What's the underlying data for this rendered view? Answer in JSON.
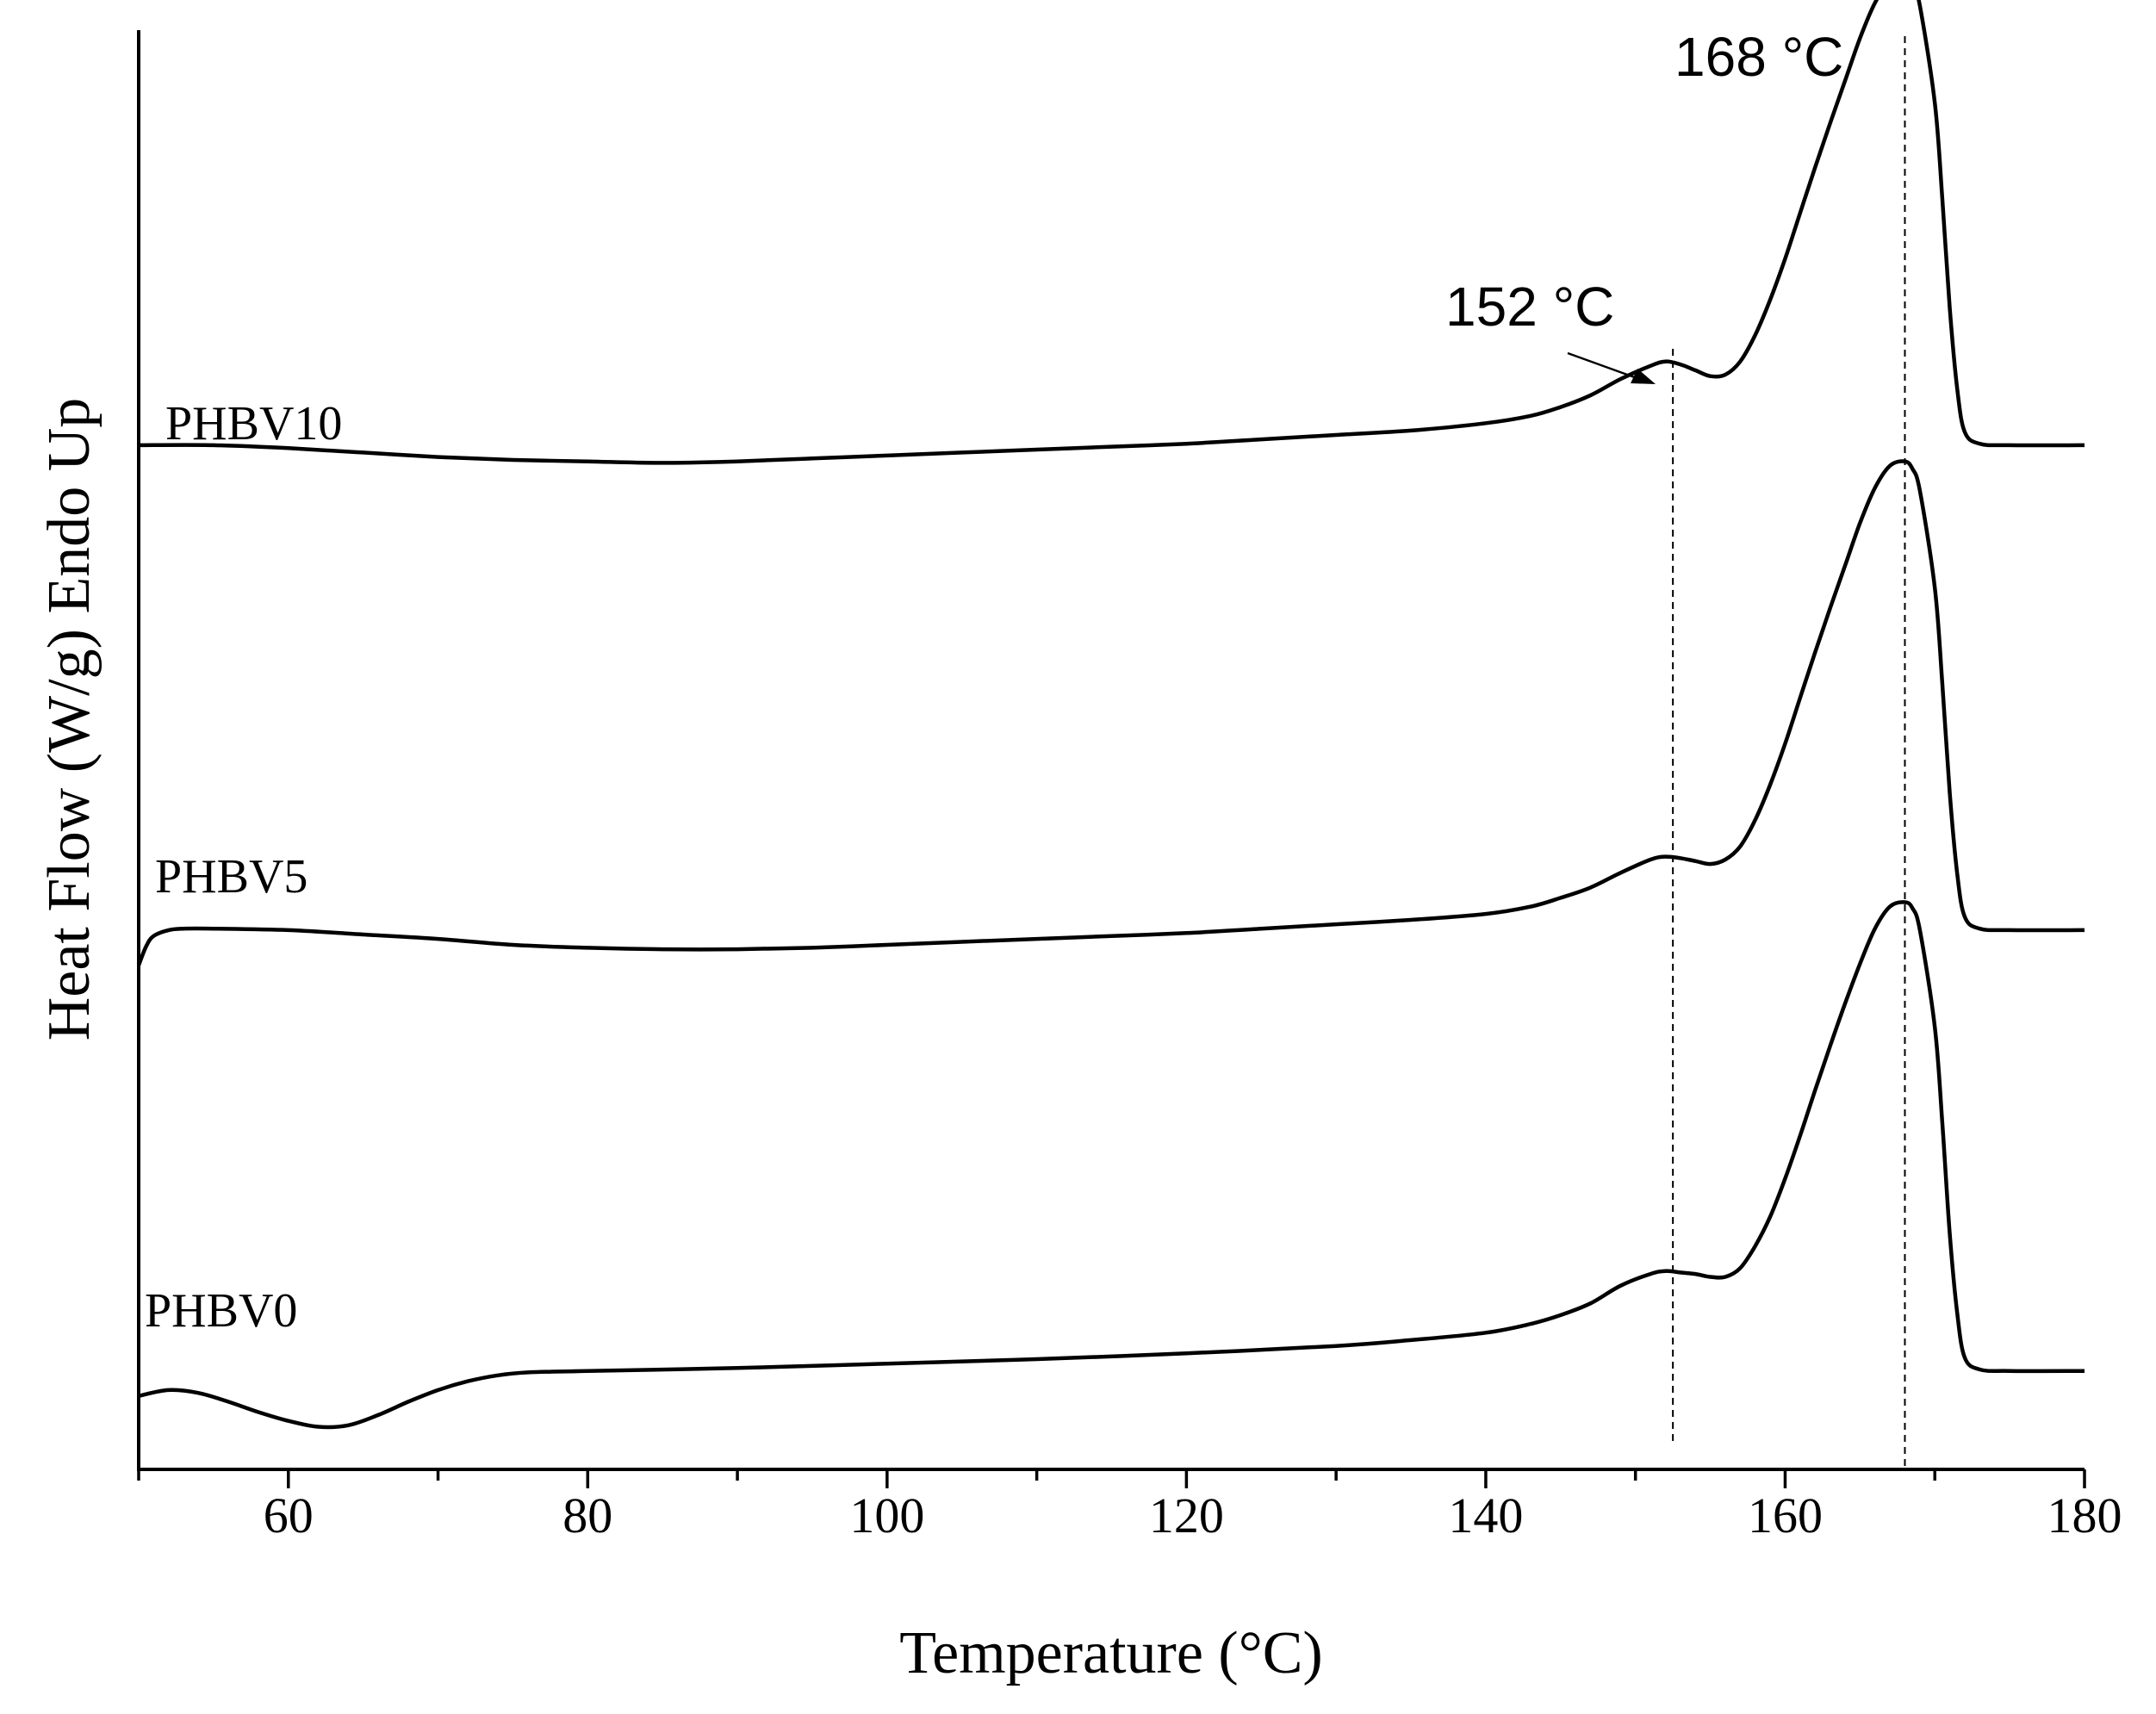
{
  "chart_data": {
    "type": "line",
    "title": "",
    "xlabel": "Temperature (°C)",
    "ylabel": "Heat Flow (W/g) Endo Up",
    "xlim": [
      50,
      180
    ],
    "ylim": [
      0,
      100
    ],
    "grid": false,
    "x_ticks_major": [
      60,
      80,
      100,
      120,
      140,
      160,
      180
    ],
    "x_ticks_minor": [
      50,
      70,
      90,
      110,
      130,
      150,
      170
    ],
    "x_tick_labels": [
      "60",
      "80",
      "100",
      "120",
      "140",
      "160",
      "180"
    ],
    "yaxis_ticks_shown": false,
    "series": [
      {
        "name": "PHBV10",
        "label": "PHBV10",
        "x": [
          50,
          55,
          60,
          65,
          70,
          75,
          80,
          85,
          90,
          95,
          100,
          105,
          110,
          115,
          120,
          125,
          130,
          135,
          140,
          143,
          145,
          147,
          149,
          151,
          152,
          153,
          154,
          155,
          156,
          157,
          158,
          159,
          160,
          161,
          162,
          163,
          164,
          165,
          166,
          167,
          168,
          168.5,
          169,
          170,
          170.5,
          171,
          171.5,
          172,
          173,
          175,
          180
        ],
        "y": [
          69.7,
          69.7,
          69.5,
          69.2,
          68.9,
          68.7,
          68.6,
          68.5,
          68.6,
          68.8,
          69.0,
          69.2,
          69.4,
          69.6,
          69.8,
          70.1,
          70.4,
          70.7,
          71.2,
          71.7,
          72.3,
          73.1,
          74.2,
          75.1,
          75.4,
          75.2,
          74.8,
          74.4,
          74.5,
          75.4,
          77.2,
          79.6,
          82.4,
          85.5,
          88.6,
          91.6,
          94.5,
          97.4,
          99.8,
          101.3,
          101.6,
          101.1,
          99.6,
          93.0,
          86.5,
          79.0,
          73.5,
          70.6,
          69.8,
          69.7,
          69.7
        ]
      },
      {
        "name": "PHBV5",
        "label": "PHBV5",
        "x": [
          50,
          50.5,
          51,
          52,
          53,
          55,
          60,
          65,
          70,
          75,
          80,
          85,
          90,
          95,
          100,
          105,
          110,
          115,
          120,
          125,
          130,
          135,
          140,
          143,
          145,
          147,
          149,
          151,
          152,
          153,
          154,
          155,
          156,
          157,
          158,
          159,
          160,
          161,
          162,
          163,
          164,
          165,
          166,
          167,
          168,
          168.5,
          169,
          170,
          170.5,
          171,
          171.5,
          172,
          173,
          175,
          180
        ],
        "y": [
          34.3,
          35.6,
          36.3,
          36.7,
          36.8,
          36.8,
          36.7,
          36.4,
          36.1,
          35.7,
          35.5,
          35.4,
          35.4,
          35.5,
          35.7,
          35.9,
          36.1,
          36.3,
          36.5,
          36.8,
          37.1,
          37.4,
          37.8,
          38.3,
          38.9,
          39.6,
          40.6,
          41.5,
          41.7,
          41.6,
          41.4,
          41.2,
          41.5,
          42.4,
          44.2,
          46.6,
          49.4,
          52.5,
          55.6,
          58.6,
          61.5,
          64.4,
          66.8,
          68.3,
          68.6,
          68.1,
          66.6,
          60.0,
          53.5,
          46.0,
          40.5,
          37.6,
          36.8,
          36.7,
          36.7
        ]
      },
      {
        "name": "PHBV0",
        "label": "PHBV0",
        "x": [
          50,
          52,
          54,
          56,
          58,
          60,
          62,
          64,
          66,
          68,
          70,
          72,
          74,
          76,
          80,
          90,
          100,
          110,
          120,
          130,
          135,
          140,
          143,
          145,
          147,
          149,
          151,
          152,
          153,
          154,
          155,
          156,
          157,
          158,
          159,
          160,
          161,
          162,
          163,
          164,
          165,
          166,
          167,
          168,
          168.5,
          169,
          170,
          170.5,
          171,
          171.5,
          172,
          173,
          175,
          180
        ],
        "y": [
          5.0,
          5.4,
          5.2,
          4.6,
          3.9,
          3.3,
          2.9,
          3.0,
          3.7,
          4.6,
          5.4,
          6.0,
          6.4,
          6.6,
          6.7,
          6.9,
          7.2,
          7.5,
          7.9,
          8.4,
          8.8,
          9.3,
          9.9,
          10.5,
          11.3,
          12.5,
          13.3,
          13.5,
          13.4,
          13.3,
          13.1,
          13.1,
          13.7,
          15.2,
          17.2,
          19.8,
          22.7,
          25.8,
          28.8,
          31.7,
          34.4,
          36.8,
          38.3,
          38.6,
          38.2,
          36.7,
          30.1,
          23.6,
          16.0,
          10.6,
          7.6,
          6.8,
          6.7,
          6.7
        ]
      }
    ],
    "reference_lines": [
      {
        "x": 152.5,
        "style": "dashed"
      },
      {
        "x": 168,
        "style": "dashed"
      }
    ],
    "annotations": [
      {
        "text": "168 °C",
        "x": 168
      },
      {
        "text": "152 °C",
        "x": 152,
        "arrow": true
      }
    ]
  }
}
